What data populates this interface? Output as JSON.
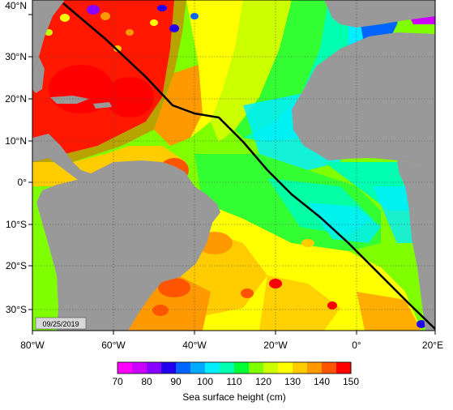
{
  "map": {
    "lat_labels": [
      "40°N",
      "30°N",
      "20°N",
      "10°N",
      "0°",
      "10°S",
      "20°S",
      "30°S"
    ],
    "lon_labels": [
      "80°W",
      "60°W",
      "40°W",
      "20°W",
      "0°",
      "20°E"
    ],
    "date_stamp": "09/25/2019",
    "land_color": "#999999"
  },
  "colorbar": {
    "ticks": [
      "70",
      "80",
      "90",
      "100",
      "110",
      "120",
      "130",
      "140",
      "150"
    ],
    "colors": [
      "#ff00ff",
      "#cc00ff",
      "#8800ff",
      "#2200ee",
      "#0066ff",
      "#00aaff",
      "#00eeff",
      "#00ffb0",
      "#00ff33",
      "#80ff00",
      "#ccff00",
      "#ffff00",
      "#ffcc00",
      "#ff9900",
      "#ff5500",
      "#ff0000"
    ],
    "label": "Sea surface height (cm)"
  }
}
